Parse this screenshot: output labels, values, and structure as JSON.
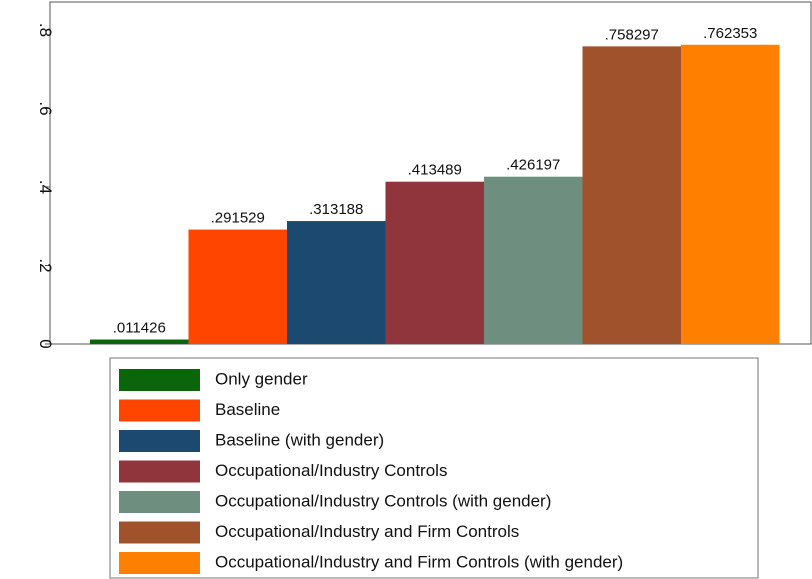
{
  "chart_data": {
    "type": "bar",
    "series": [
      {
        "name": "Only gender",
        "color": "#0b650b",
        "values": [
          0.011426
        ],
        "value_labels": [
          ".011426"
        ]
      },
      {
        "name": "Baseline",
        "color": "#ff4500",
        "values": [
          0.291529
        ],
        "value_labels": [
          ".291529"
        ]
      },
      {
        "name": "Baseline (with gender)",
        "color": "#1c4970",
        "values": [
          0.313188
        ],
        "value_labels": [
          ".313188"
        ]
      },
      {
        "name": "Occupational/Industry Controls",
        "color": "#90353b",
        "values": [
          0.413489
        ],
        "value_labels": [
          ".413489"
        ]
      },
      {
        "name": "Occupational/Industry Controls (with gender)",
        "color": "#6e8e80",
        "values": [
          0.426197
        ],
        "value_labels": [
          ".426197"
        ]
      },
      {
        "name": "Occupational/Industry and Firm Controls",
        "color": "#a0522d",
        "values": [
          0.758297
        ],
        "value_labels": [
          ".758297"
        ]
      },
      {
        "name": "Occupational/Industry and Firm Controls (with gender)",
        "color": "#ff8000",
        "values": [
          0.762353
        ],
        "value_labels": [
          ".762353"
        ]
      }
    ],
    "ylim": [
      0,
      0.87
    ],
    "yticks": [
      {
        "value": 0,
        "label": "0"
      },
      {
        "value": 0.2,
        "label": ".2"
      },
      {
        "value": 0.4,
        "label": ".4"
      },
      {
        "value": 0.6,
        "label": ".6"
      },
      {
        "value": 0.8,
        "label": ".8"
      }
    ]
  }
}
